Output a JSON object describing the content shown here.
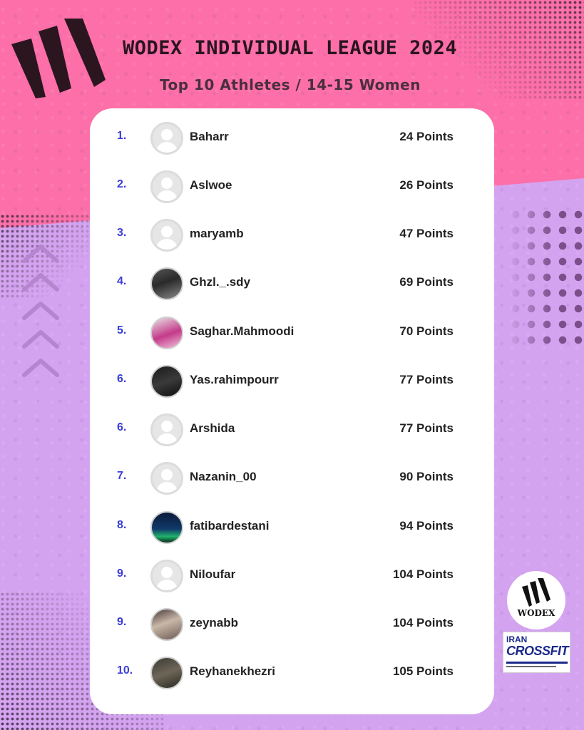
{
  "header": {
    "title": "WODEX INDIVIDUAL LEAGUE 2024",
    "subtitle": "Top 10 Athletes / 14-15 Women"
  },
  "colors": {
    "pink": "#fc6fa8",
    "lavender": "#d4a3f0",
    "rank_blue": "#3b3dd6",
    "logo_dark": "#2b1620"
  },
  "leaderboard": [
    {
      "rank": "1.",
      "name": "Baharr",
      "points": "24 Points",
      "avatar": "placeholder"
    },
    {
      "rank": "2.",
      "name": "Aslwoe",
      "points": "26 Points",
      "avatar": "placeholder"
    },
    {
      "rank": "3.",
      "name": "maryamb",
      "points": "47 Points",
      "avatar": "placeholder"
    },
    {
      "rank": "4.",
      "name": "Ghzl._.sdy",
      "points": "69 Points",
      "avatar": "photo"
    },
    {
      "rank": "5.",
      "name": "Saghar.Mahmoodi",
      "points": "70 Points",
      "avatar": "photo"
    },
    {
      "rank": "6.",
      "name": "Yas.rahimpourr",
      "points": "77 Points",
      "avatar": "photo"
    },
    {
      "rank": "6.",
      "name": "Arshida",
      "points": "77 Points",
      "avatar": "placeholder"
    },
    {
      "rank": "7.",
      "name": "Nazanin_00",
      "points": "90 Points",
      "avatar": "placeholder"
    },
    {
      "rank": "8.",
      "name": "fatibardestani",
      "points": "94 Points",
      "avatar": "photo"
    },
    {
      "rank": "9.",
      "name": "Niloufar",
      "points": "104 Points",
      "avatar": "placeholder"
    },
    {
      "rank": "9.",
      "name": "zeynabb",
      "points": "104 Points",
      "avatar": "photo"
    },
    {
      "rank": "10.",
      "name": "Reyhanekhezri",
      "points": "105 Points",
      "avatar": "photo"
    }
  ],
  "badges": {
    "wodex": "WODEX",
    "crossfit_top": "IRAN",
    "crossfit_word": "CROSSFIT"
  }
}
